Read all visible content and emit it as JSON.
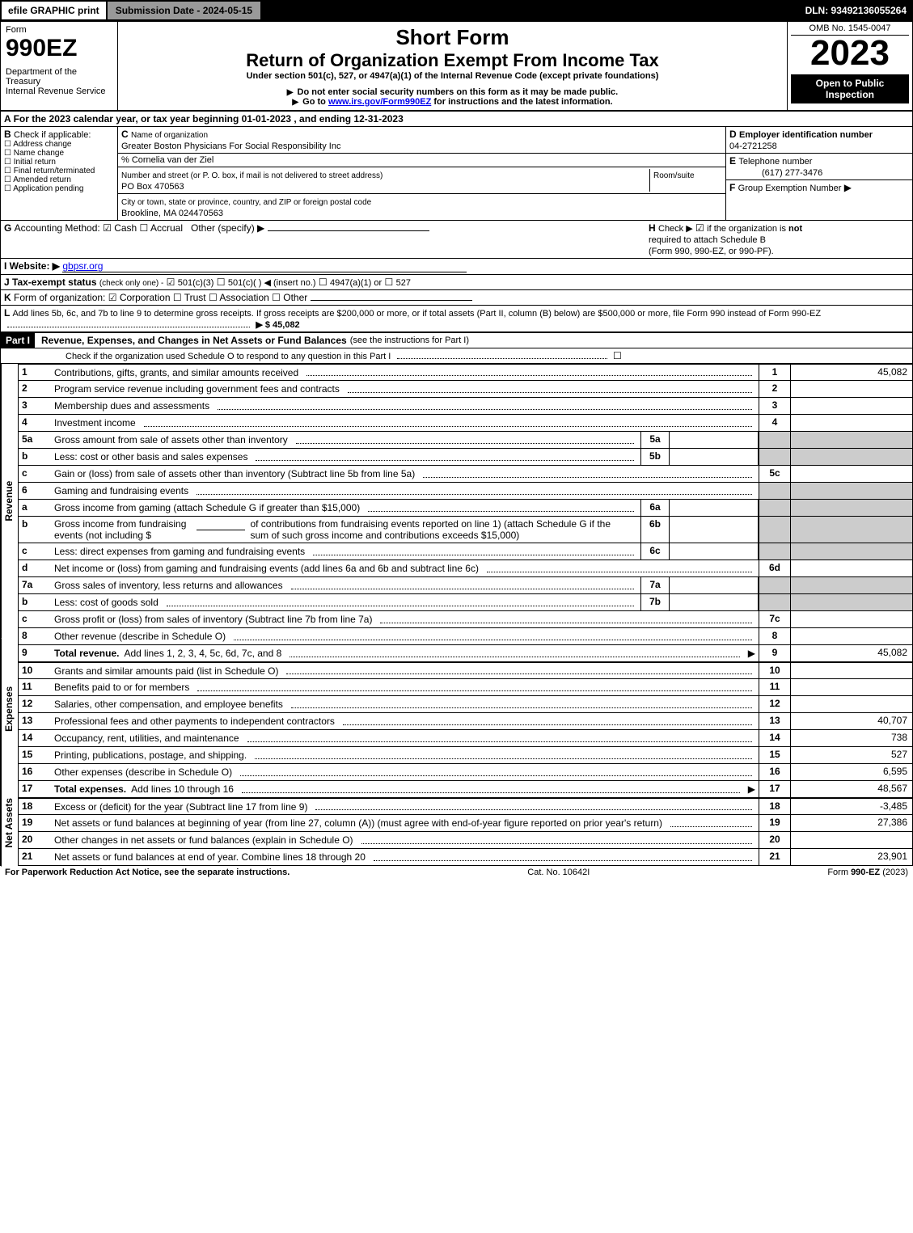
{
  "topbar": {
    "efile": "efile GRAPHIC print",
    "subdate": "Submission Date - 2024-05-15",
    "dln": "DLN: 93492136055264"
  },
  "header": {
    "form_word": "Form",
    "form_num": "990EZ",
    "dept": "Department of the Treasury",
    "irs": "Internal Revenue Service",
    "short_form": "Short Form",
    "title": "Return of Organization Exempt From Income Tax",
    "subtitle": "Under section 501(c), 527, or 4947(a)(1) of the Internal Revenue Code (except private foundations)",
    "note1": "Do not enter social security numbers on this form as it may be made public.",
    "note2_pre": "Go to ",
    "note2_link": "www.irs.gov/Form990EZ",
    "note2_post": " for instructions and the latest information.",
    "omb": "OMB No. 1545-0047",
    "year": "2023",
    "badge1": "Open to Public",
    "badge2": "Inspection"
  },
  "A": {
    "text": "For the 2023 calendar year, or tax year beginning 01-01-2023 , and ending 12-31-2023"
  },
  "B": {
    "label": "Check if applicable:",
    "opts": [
      "Address change",
      "Name change",
      "Initial return",
      "Final return/terminated",
      "Amended return",
      "Application pending"
    ]
  },
  "C": {
    "label": "Name of organization",
    "name": "Greater Boston Physicians For Social Responsibility Inc",
    "care_of": "% Cornelia van der Ziel",
    "street_label": "Number and street (or P. O. box, if mail is not delivered to street address)",
    "room_label": "Room/suite",
    "street": "PO Box 470563",
    "city_label": "City or town, state or province, country, and ZIP or foreign postal code",
    "city": "Brookline, MA  024470563"
  },
  "D": {
    "label": "Employer identification number",
    "value": "04-2721258"
  },
  "E": {
    "label": "Telephone number",
    "value": "(617) 277-3476"
  },
  "F": {
    "label": "Group Exemption Number",
    "arrow": "▶"
  },
  "G": {
    "label": "Accounting Method:",
    "cash": "Cash",
    "accrual": "Accrual",
    "other": "Other (specify) ▶"
  },
  "H": {
    "text1": "Check ▶",
    "text2": "if the organization is ",
    "not": "not",
    "text3": "required to attach Schedule B",
    "text4": "(Form 990, 990-EZ, or 990-PF)."
  },
  "I": {
    "label": "Website: ▶",
    "value": "gbpsr.org"
  },
  "J": {
    "label": "Tax-exempt status",
    "note": "(check only one) -",
    "o1": "501(c)(3)",
    "o2": "501(c)(  ) ◀ (insert no.)",
    "o3": "4947(a)(1) or",
    "o4": "527"
  },
  "K": {
    "label": "Form of organization:",
    "opts": [
      "Corporation",
      "Trust",
      "Association",
      "Other"
    ]
  },
  "L": {
    "text": "Add lines 5b, 6c, and 7b to line 9 to determine gross receipts. If gross receipts are $200,000 or more, or if total assets (Part II, column (B) below) are $500,000 or more, file Form 990 instead of Form 990-EZ",
    "arrow_amt": "▶ $ 45,082"
  },
  "partI": {
    "label": "Part I",
    "title": "Revenue, Expenses, and Changes in Net Assets or Fund Balances",
    "title_note": "(see the instructions for Part I)",
    "check_note": "Check if the organization used Schedule O to respond to any question in this Part I",
    "check_box": "☐"
  },
  "side_labels": {
    "revenue": "Revenue",
    "expenses": "Expenses",
    "netassets": "Net Assets"
  },
  "lines": {
    "l1": {
      "n": "1",
      "d": "Contributions, gifts, grants, and similar amounts received",
      "ln": "1",
      "amt": "45,082"
    },
    "l2": {
      "n": "2",
      "d": "Program service revenue including government fees and contracts",
      "ln": "2",
      "amt": ""
    },
    "l3": {
      "n": "3",
      "d": "Membership dues and assessments",
      "ln": "3",
      "amt": ""
    },
    "l4": {
      "n": "4",
      "d": "Investment income",
      "ln": "4",
      "amt": ""
    },
    "l5a": {
      "n": "5a",
      "d": "Gross amount from sale of assets other than inventory",
      "sub": "5a"
    },
    "l5b": {
      "n": "b",
      "d": "Less: cost or other basis and sales expenses",
      "sub": "5b"
    },
    "l5c": {
      "n": "c",
      "d": "Gain or (loss) from sale of assets other than inventory (Subtract line 5b from line 5a)",
      "ln": "5c",
      "amt": ""
    },
    "l6": {
      "n": "6",
      "d": "Gaming and fundraising events"
    },
    "l6a": {
      "n": "a",
      "d": "Gross income from gaming (attach Schedule G if greater than $15,000)",
      "sub": "6a"
    },
    "l6b": {
      "n": "b",
      "d1": "Gross income from fundraising events (not including $",
      "d2": "of contributions from fundraising events reported on line 1) (attach Schedule G if the sum of such gross income and contributions exceeds $15,000)",
      "sub": "6b"
    },
    "l6c": {
      "n": "c",
      "d": "Less: direct expenses from gaming and fundraising events",
      "sub": "6c"
    },
    "l6d": {
      "n": "d",
      "d": "Net income or (loss) from gaming and fundraising events (add lines 6a and 6b and subtract line 6c)",
      "ln": "6d",
      "amt": ""
    },
    "l7a": {
      "n": "7a",
      "d": "Gross sales of inventory, less returns and allowances",
      "sub": "7a"
    },
    "l7b": {
      "n": "b",
      "d": "Less: cost of goods sold",
      "sub": "7b"
    },
    "l7c": {
      "n": "c",
      "d": "Gross profit or (loss) from sales of inventory (Subtract line 7b from line 7a)",
      "ln": "7c",
      "amt": ""
    },
    "l8": {
      "n": "8",
      "d": "Other revenue (describe in Schedule O)",
      "ln": "8",
      "amt": ""
    },
    "l9": {
      "n": "9",
      "d": "Total revenue.",
      "d2": "Add lines 1, 2, 3, 4, 5c, 6d, 7c, and 8",
      "ln": "9",
      "amt": "45,082",
      "arrow": true
    },
    "l10": {
      "n": "10",
      "d": "Grants and similar amounts paid (list in Schedule O)",
      "ln": "10",
      "amt": ""
    },
    "l11": {
      "n": "11",
      "d": "Benefits paid to or for members",
      "ln": "11",
      "amt": ""
    },
    "l12": {
      "n": "12",
      "d": "Salaries, other compensation, and employee benefits",
      "ln": "12",
      "amt": ""
    },
    "l13": {
      "n": "13",
      "d": "Professional fees and other payments to independent contractors",
      "ln": "13",
      "amt": "40,707"
    },
    "l14": {
      "n": "14",
      "d": "Occupancy, rent, utilities, and maintenance",
      "ln": "14",
      "amt": "738"
    },
    "l15": {
      "n": "15",
      "d": "Printing, publications, postage, and shipping.",
      "ln": "15",
      "amt": "527"
    },
    "l16": {
      "n": "16",
      "d": "Other expenses (describe in Schedule O)",
      "ln": "16",
      "amt": "6,595"
    },
    "l17": {
      "n": "17",
      "d": "Total expenses.",
      "d2": "Add lines 10 through 16",
      "ln": "17",
      "amt": "48,567",
      "arrow": true
    },
    "l18": {
      "n": "18",
      "d": "Excess or (deficit) for the year (Subtract line 17 from line 9)",
      "ln": "18",
      "amt": "-3,485"
    },
    "l19": {
      "n": "19",
      "d": "Net assets or fund balances at beginning of year (from line 27, column (A)) (must agree with end-of-year figure reported on prior year's return)",
      "ln": "19",
      "amt": "27,386"
    },
    "l20": {
      "n": "20",
      "d": "Other changes in net assets or fund balances (explain in Schedule O)",
      "ln": "20",
      "amt": ""
    },
    "l21": {
      "n": "21",
      "d": "Net assets or fund balances at end of year. Combine lines 18 through 20",
      "ln": "21",
      "amt": "23,901"
    }
  },
  "footer": {
    "left": "For Paperwork Reduction Act Notice, see the separate instructions.",
    "mid": "Cat. No. 10642I",
    "right_pre": "Form ",
    "right_b": "990-EZ",
    "right_post": " (2023)"
  }
}
